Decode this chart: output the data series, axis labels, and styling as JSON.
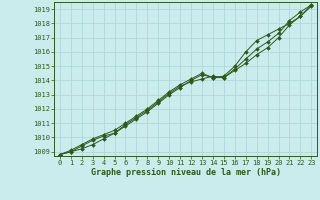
{
  "x": [
    0,
    1,
    2,
    3,
    4,
    5,
    6,
    7,
    8,
    9,
    10,
    11,
    12,
    13,
    14,
    15,
    16,
    17,
    18,
    19,
    20,
    21,
    22,
    23
  ],
  "line1": [
    1008.8,
    1009.0,
    1009.2,
    1009.5,
    1009.9,
    1010.3,
    1010.9,
    1011.4,
    1011.9,
    1012.5,
    1013.1,
    1013.6,
    1013.9,
    1014.1,
    1014.3,
    1014.2,
    1014.8,
    1015.5,
    1016.2,
    1016.7,
    1017.3,
    1018.2,
    1018.8,
    1019.3
  ],
  "line2": [
    1008.8,
    1009.0,
    1009.4,
    1009.8,
    1010.1,
    1010.3,
    1010.8,
    1011.3,
    1011.8,
    1012.4,
    1013.0,
    1013.5,
    1014.0,
    1014.4,
    1014.2,
    1014.2,
    1014.7,
    1015.2,
    1015.8,
    1016.3,
    1017.0,
    1017.9,
    1018.5,
    1019.2
  ],
  "line3": [
    1008.8,
    1009.1,
    1009.5,
    1009.9,
    1010.2,
    1010.5,
    1011.0,
    1011.5,
    1012.0,
    1012.6,
    1013.2,
    1013.7,
    1014.1,
    1014.5,
    1014.2,
    1014.3,
    1015.0,
    1016.0,
    1016.8,
    1017.2,
    1017.6,
    1018.0,
    1018.5,
    1019.3
  ],
  "line_color": "#2d5a1b",
  "bg_color": "#cbecec",
  "grid_color": "#aad4d4",
  "xlabel": "Graphe pression niveau de la mer (hPa)",
  "ylim_min": 1008.7,
  "ylim_max": 1019.5,
  "xlim_min": -0.5,
  "xlim_max": 23.5,
  "yticks": [
    1009,
    1010,
    1011,
    1012,
    1013,
    1014,
    1015,
    1016,
    1017,
    1018,
    1019
  ],
  "xticks": [
    0,
    1,
    2,
    3,
    4,
    5,
    6,
    7,
    8,
    9,
    10,
    11,
    12,
    13,
    14,
    15,
    16,
    17,
    18,
    19,
    20,
    21,
    22,
    23
  ],
  "tick_fontsize": 5,
  "xlabel_fontsize": 6,
  "marker": "D",
  "markersize": 2.0,
  "linewidth": 0.7
}
